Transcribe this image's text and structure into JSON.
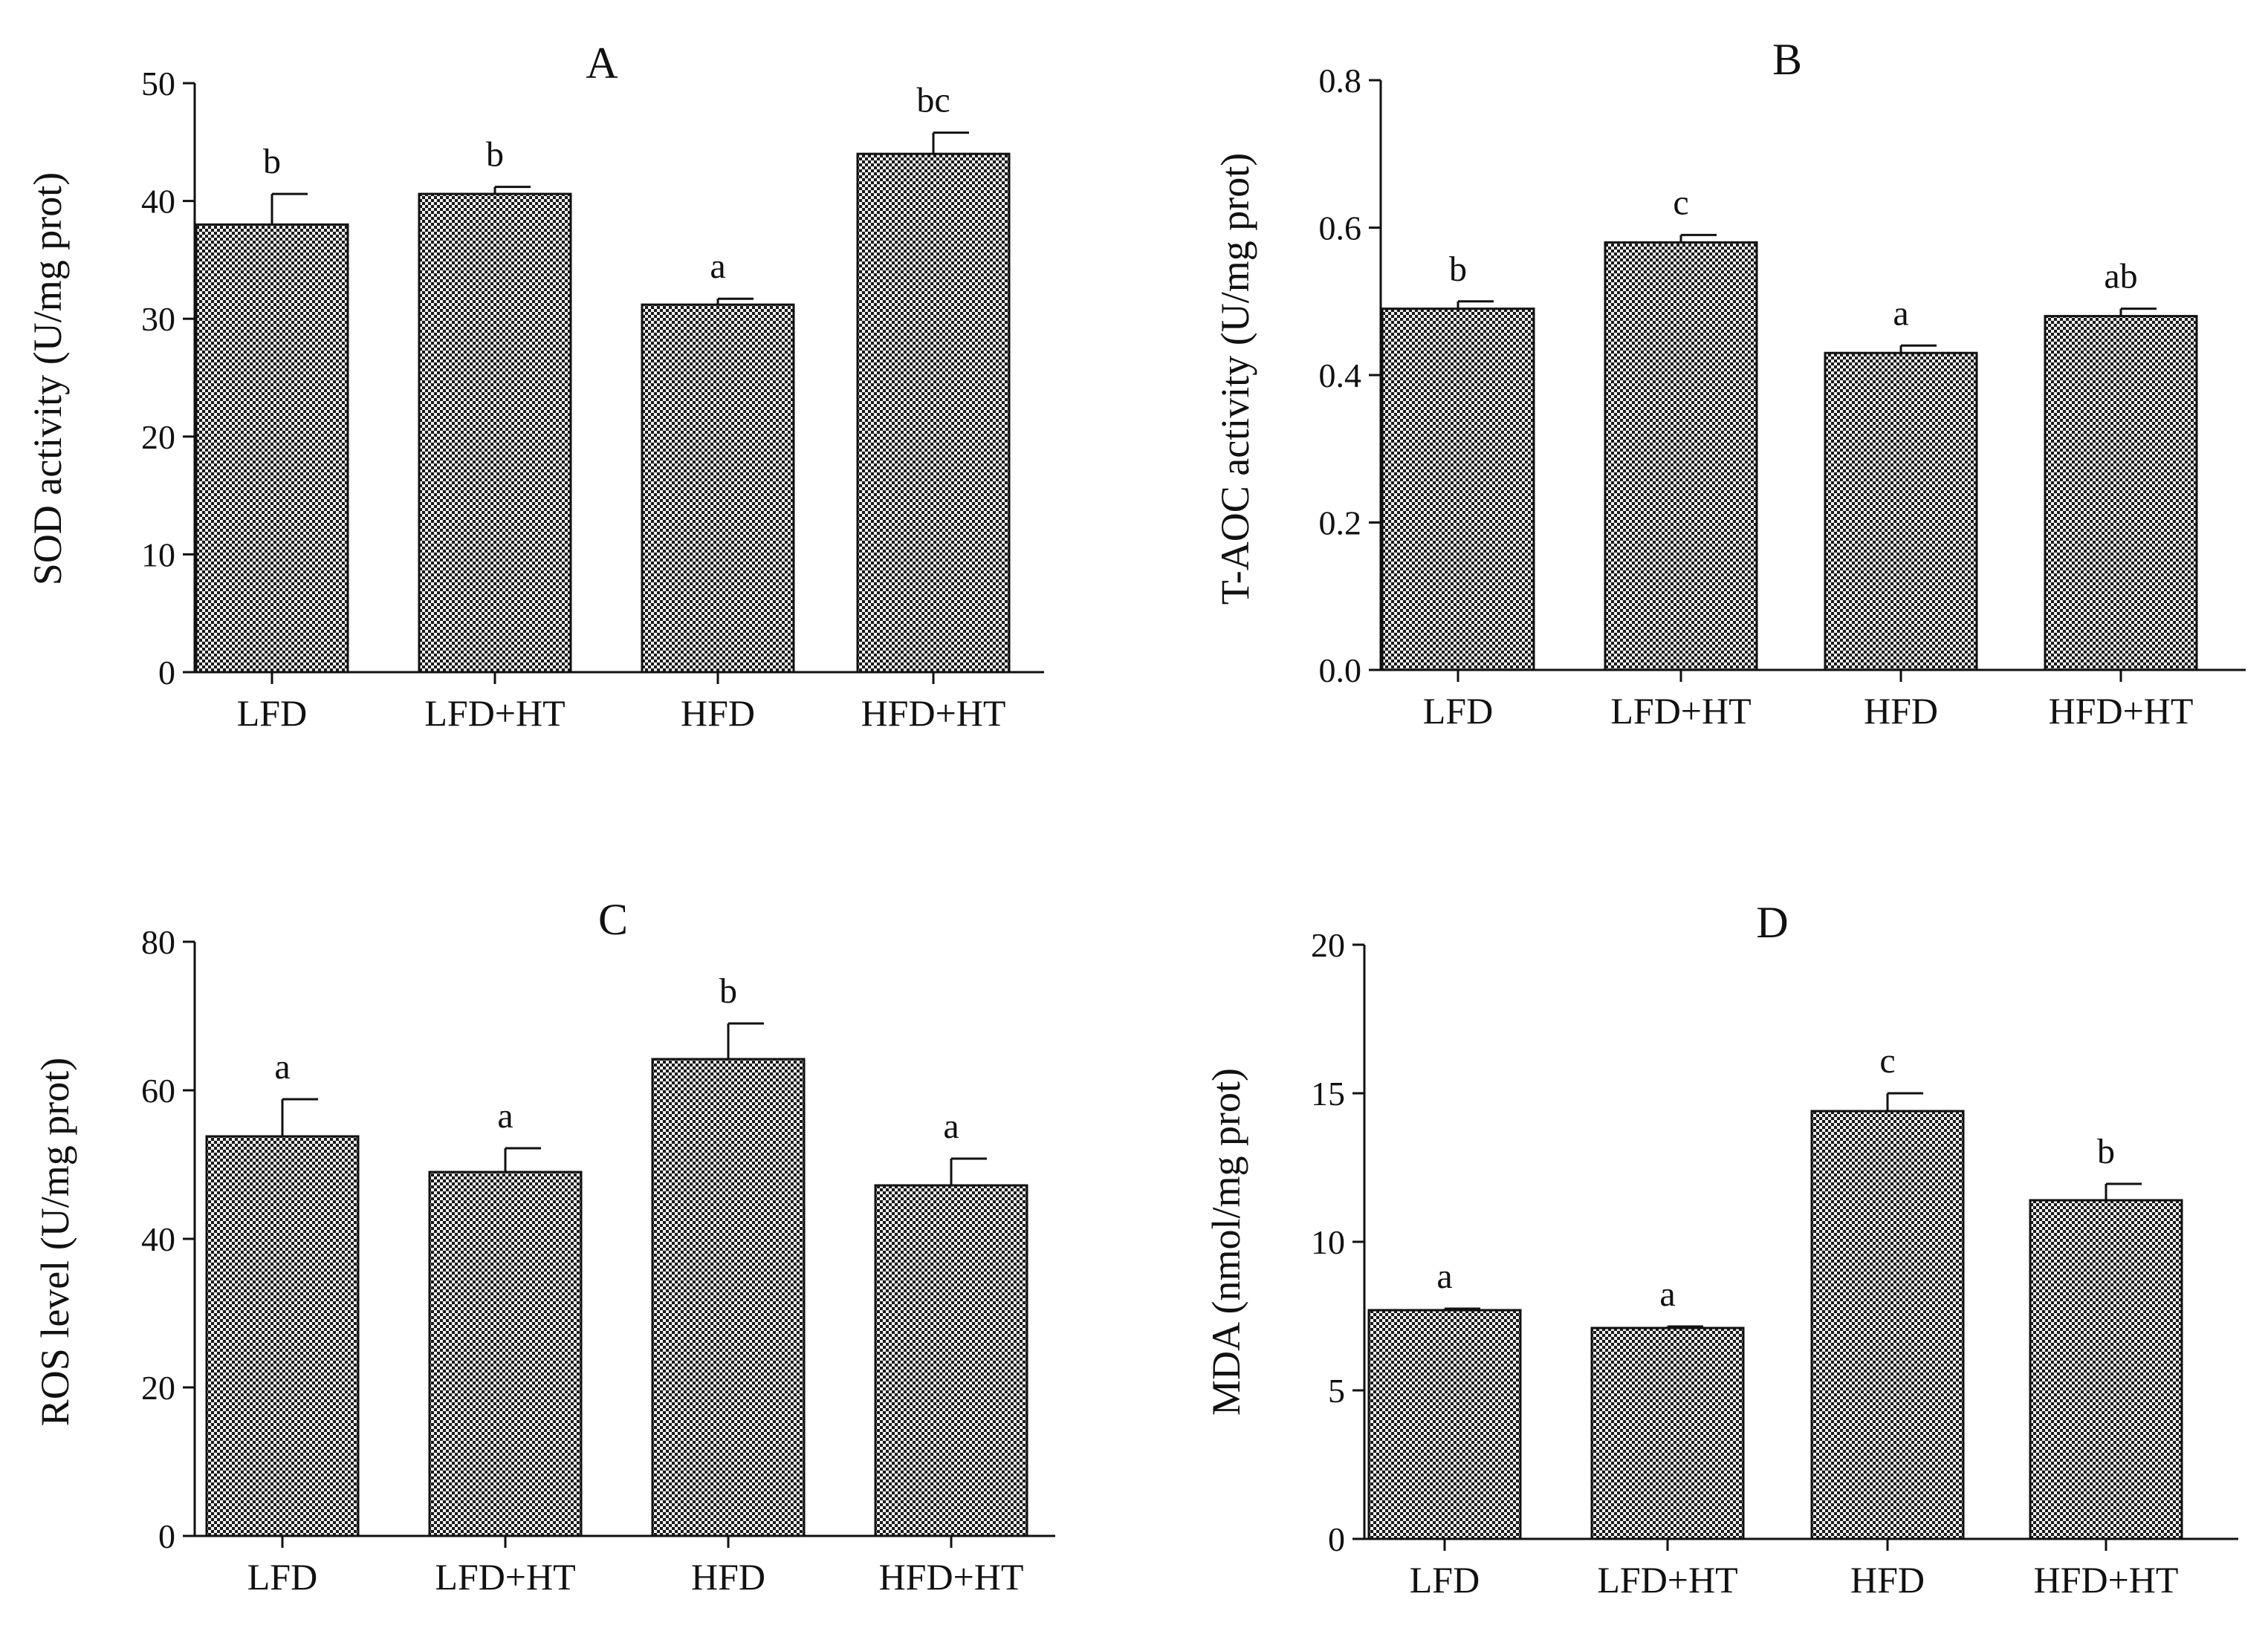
{
  "figure": {
    "bar_color": "#4a4a4a",
    "bar_pattern_fg": "#1a1a1a",
    "bar_pattern_bg": "#f2f2f2",
    "axis_color": "#111111"
  },
  "chart_data": [
    {
      "type": "bar",
      "title": "A",
      "xlabel": "",
      "ylabel": "SOD activity (U/mg prot)",
      "categories": [
        "LFD",
        "LFD+HT",
        "HFD",
        "HFD+HT"
      ],
      "values": [
        38.0,
        40.6,
        31.2,
        44.0
      ],
      "errors": [
        2.6,
        0.6,
        0.5,
        1.8
      ],
      "significance": [
        "b",
        "b",
        "a",
        "bc"
      ],
      "ylim": [
        0,
        50
      ],
      "yticks": [
        0,
        10,
        20,
        30,
        40,
        50
      ],
      "ytick_labels": [
        "0",
        "10",
        "20",
        "30",
        "40",
        "50"
      ],
      "grid": false
    },
    {
      "type": "bar",
      "title": "B",
      "xlabel": "",
      "ylabel": "T-AOC activity (U/mg prot)",
      "categories": [
        "LFD",
        "LFD+HT",
        "HFD",
        "HFD+HT"
      ],
      "values": [
        0.49,
        0.58,
        0.43,
        0.48
      ],
      "errors": [
        0.01,
        0.01,
        0.01,
        0.01
      ],
      "significance": [
        "b",
        "c",
        "a",
        "ab"
      ],
      "ylim": [
        0,
        0.8
      ],
      "yticks": [
        0,
        0.2,
        0.4,
        0.6,
        0.8
      ],
      "ytick_labels": [
        "0.0",
        "0.2",
        "0.4",
        "0.6",
        "0.8"
      ],
      "grid": false
    },
    {
      "type": "bar",
      "title": "C",
      "xlabel": "",
      "ylabel": "ROS level (U/mg prot)",
      "categories": [
        "LFD",
        "LFD+HT",
        "HFD",
        "HFD+HT"
      ],
      "values": [
        53.8,
        49.0,
        64.2,
        47.2
      ],
      "errors": [
        5.0,
        3.2,
        4.8,
        3.6
      ],
      "significance": [
        "a",
        "a",
        "b",
        "a"
      ],
      "ylim": [
        0,
        80
      ],
      "yticks": [
        0,
        20,
        40,
        60,
        80
      ],
      "ytick_labels": [
        "0",
        "20",
        "40",
        "60",
        "80"
      ],
      "grid": false
    },
    {
      "type": "bar",
      "title": "D",
      "xlabel": "",
      "ylabel": "MDA (nmol/mg prot)",
      "categories": [
        "LFD",
        "LFD+HT",
        "HFD",
        "HFD+HT"
      ],
      "values": [
        7.7,
        7.1,
        14.4,
        11.4
      ],
      "errors": [
        0.05,
        0.05,
        0.6,
        0.55
      ],
      "significance": [
        "a",
        "a",
        "c",
        "b"
      ],
      "ylim": [
        0,
        20
      ],
      "yticks": [
        0,
        5,
        10,
        15,
        20
      ],
      "ytick_labels": [
        "0",
        "5",
        "10",
        "15",
        "20"
      ],
      "grid": false
    }
  ]
}
